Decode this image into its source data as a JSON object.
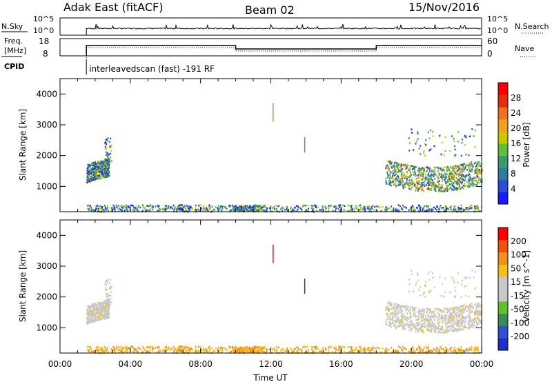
{
  "header": {
    "site": "Adak East (fitACF)",
    "beam": "Beam 02",
    "date": "15/Nov/2016"
  },
  "colors": {
    "power_scale": [
      "#1a1aff",
      "#2b4cd6",
      "#2f7a9e",
      "#3d9a6a",
      "#5fbf3a",
      "#c8c800",
      "#f0a020",
      "#f07020",
      "#e03010",
      "#ff0000"
    ],
    "velocity_scale": [
      "#2030c0",
      "#3050d0",
      "#3a8a5a",
      "#60c030",
      "#c8c8c8",
      "#c8c8c8",
      "#f0c020",
      "#f09020",
      "#f05010",
      "#ff0000"
    ]
  },
  "icons": {
    "slash": "/"
  },
  "chart_data": [
    {
      "panel": "noise",
      "type": "line",
      "left_labels": [
        "N.Sky"
      ],
      "left_ticks": [
        "10^5",
        "10^0"
      ],
      "right_label": "N.Search",
      "right_ticks": [
        "10^5",
        "10^0"
      ],
      "x_range": [
        0,
        24
      ]
    },
    {
      "panel": "frequency",
      "type": "line",
      "left_labels": [
        "Freq.",
        "[MHz]"
      ],
      "left_ticks": [
        "18",
        "8"
      ],
      "right_label": "Nave",
      "right_ticks": [
        "60",
        "0"
      ],
      "y_range": [
        8,
        18
      ],
      "x_range": [
        0,
        24
      ],
      "series": [
        {
          "x": [
            1.5,
            1.5,
            10,
            10,
            18,
            18,
            24
          ],
          "y": [
            8,
            14,
            14,
            12,
            12,
            14,
            14
          ]
        }
      ]
    },
    {
      "panel": "cpid",
      "label": "CPID",
      "text": "interleavedscan (fast) -191 RF",
      "start": 1.5
    },
    {
      "panel": "power",
      "type": "heatmap",
      "ylabel": "Slant Range [km]",
      "y_ticks": [
        "1000",
        "2000",
        "3000",
        "4000"
      ],
      "y_range": [
        180,
        4500
      ],
      "x_range": [
        0,
        24
      ],
      "colorbar_label": "Power [dB]",
      "colorbar_ticks": [
        "4",
        "8",
        "12",
        "16",
        "20",
        "24",
        "28"
      ],
      "colorbar_range": [
        0,
        32
      ]
    },
    {
      "panel": "velocity",
      "type": "heatmap",
      "ylabel": "Slant Range [km]",
      "y_ticks": [
        "1000",
        "2000",
        "3000",
        "4000"
      ],
      "y_range": [
        180,
        4500
      ],
      "x_range": [
        0,
        24
      ],
      "colorbar_label": "Velocity [m s^-1]",
      "colorbar_ticks": [
        "200",
        "100",
        "50",
        "15",
        "-15",
        "-50",
        "-100",
        "-200"
      ],
      "x_ticks": [
        "00:00",
        "04:00",
        "08:00",
        "12:00",
        "16:00",
        "20:00",
        "00:00"
      ],
      "xlabel": "Time UT"
    }
  ]
}
